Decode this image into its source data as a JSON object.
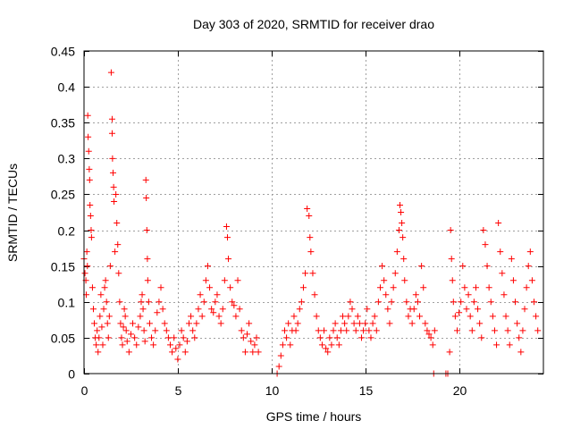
{
  "chart_data": {
    "type": "scatter",
    "title": "Day 303 of 2020, SRMTID for receiver drao",
    "xlabel": "GPS time / hours",
    "ylabel": "SRMTID / TECUs",
    "xlim": [
      0,
      24.5
    ],
    "ylim": [
      0,
      0.45
    ],
    "xticks": [
      0,
      5,
      10,
      15,
      20
    ],
    "xtick_labels": [
      "0",
      "5",
      "10",
      "15",
      "20"
    ],
    "yticks": [
      0,
      0.05,
      0.1,
      0.15,
      0.2,
      0.25,
      0.3,
      0.35,
      0.4,
      0.45
    ],
    "ytick_labels": [
      "0",
      "0.05",
      "0.1",
      "0.15",
      "0.2",
      "0.25",
      "0.3",
      "0.35",
      "0.4",
      "0.45"
    ],
    "grid": true,
    "marker": "plus",
    "color": "#ff0000",
    "series": [
      {
        "name": "SRMTID",
        "points": [
          [
            0.0,
            0.16
          ],
          [
            0.05,
            0.14
          ],
          [
            0.1,
            0.13
          ],
          [
            0.12,
            0.11
          ],
          [
            0.15,
            0.17
          ],
          [
            0.18,
            0.15
          ],
          [
            0.2,
            0.36
          ],
          [
            0.22,
            0.33
          ],
          [
            0.25,
            0.31
          ],
          [
            0.28,
            0.285
          ],
          [
            0.3,
            0.27
          ],
          [
            0.32,
            0.235
          ],
          [
            0.35,
            0.22
          ],
          [
            0.38,
            0.2
          ],
          [
            0.4,
            0.19
          ],
          [
            0.45,
            0.12
          ],
          [
            0.5,
            0.09
          ],
          [
            0.55,
            0.07
          ],
          [
            0.6,
            0.05
          ],
          [
            0.65,
            0.04
          ],
          [
            0.7,
            0.06
          ],
          [
            0.75,
            0.03
          ],
          [
            0.8,
            0.05
          ],
          [
            0.85,
            0.08
          ],
          [
            0.9,
            0.11
          ],
          [
            0.95,
            0.065
          ],
          [
            1.0,
            0.04
          ],
          [
            1.05,
            0.09
          ],
          [
            1.1,
            0.12
          ],
          [
            1.15,
            0.13
          ],
          [
            1.2,
            0.1
          ],
          [
            1.25,
            0.07
          ],
          [
            1.3,
            0.05
          ],
          [
            1.35,
            0.08
          ],
          [
            1.4,
            0.15
          ],
          [
            1.45,
            0.42
          ],
          [
            1.5,
            0.355
          ],
          [
            1.5,
            0.335
          ],
          [
            1.52,
            0.3
          ],
          [
            1.55,
            0.28
          ],
          [
            1.58,
            0.26
          ],
          [
            1.6,
            0.24
          ],
          [
            1.65,
            0.17
          ],
          [
            1.7,
            0.25
          ],
          [
            1.75,
            0.21
          ],
          [
            1.8,
            0.18
          ],
          [
            1.85,
            0.14
          ],
          [
            1.9,
            0.1
          ],
          [
            1.95,
            0.07
          ],
          [
            2.0,
            0.05
          ],
          [
            2.05,
            0.04
          ],
          [
            2.1,
            0.065
          ],
          [
            2.15,
            0.09
          ],
          [
            2.2,
            0.08
          ],
          [
            2.25,
            0.06
          ],
          [
            2.3,
            0.045
          ],
          [
            2.4,
            0.03
          ],
          [
            2.5,
            0.055
          ],
          [
            2.6,
            0.07
          ],
          [
            2.7,
            0.05
          ],
          [
            2.8,
            0.04
          ],
          [
            2.9,
            0.065
          ],
          [
            3.0,
            0.08
          ],
          [
            3.05,
            0.1
          ],
          [
            3.1,
            0.11
          ],
          [
            3.15,
            0.09
          ],
          [
            3.2,
            0.06
          ],
          [
            3.25,
            0.045
          ],
          [
            3.3,
            0.27
          ],
          [
            3.32,
            0.245
          ],
          [
            3.35,
            0.2
          ],
          [
            3.38,
            0.16
          ],
          [
            3.4,
            0.13
          ],
          [
            3.45,
            0.1
          ],
          [
            3.5,
            0.07
          ],
          [
            3.6,
            0.05
          ],
          [
            3.7,
            0.04
          ],
          [
            3.8,
            0.06
          ],
          [
            3.9,
            0.085
          ],
          [
            4.0,
            0.1
          ],
          [
            4.1,
            0.12
          ],
          [
            4.2,
            0.09
          ],
          [
            4.3,
            0.07
          ],
          [
            4.4,
            0.06
          ],
          [
            4.5,
            0.05
          ],
          [
            4.6,
            0.04
          ],
          [
            4.7,
            0.03
          ],
          [
            4.8,
            0.05
          ],
          [
            4.9,
            0.035
          ],
          [
            5.0,
            0.02
          ],
          [
            5.1,
            0.04
          ],
          [
            5.2,
            0.06
          ],
          [
            5.3,
            0.05
          ],
          [
            5.4,
            0.03
          ],
          [
            5.5,
            0.045
          ],
          [
            5.6,
            0.07
          ],
          [
            5.7,
            0.08
          ],
          [
            5.8,
            0.06
          ],
          [
            5.9,
            0.05
          ],
          [
            6.0,
            0.07
          ],
          [
            6.1,
            0.09
          ],
          [
            6.2,
            0.11
          ],
          [
            6.3,
            0.08
          ],
          [
            6.4,
            0.1
          ],
          [
            6.5,
            0.13
          ],
          [
            6.6,
            0.15
          ],
          [
            6.7,
            0.12
          ],
          [
            6.8,
            0.09
          ],
          [
            6.9,
            0.085
          ],
          [
            7.0,
            0.1
          ],
          [
            7.1,
            0.11
          ],
          [
            7.2,
            0.08
          ],
          [
            7.3,
            0.07
          ],
          [
            7.4,
            0.09
          ],
          [
            7.5,
            0.13
          ],
          [
            7.6,
            0.205
          ],
          [
            7.65,
            0.19
          ],
          [
            7.7,
            0.16
          ],
          [
            7.8,
            0.12
          ],
          [
            7.9,
            0.1
          ],
          [
            8.0,
            0.095
          ],
          [
            8.1,
            0.08
          ],
          [
            8.2,
            0.13
          ],
          [
            8.3,
            0.09
          ],
          [
            8.4,
            0.06
          ],
          [
            8.5,
            0.05
          ],
          [
            8.6,
            0.03
          ],
          [
            8.7,
            0.055
          ],
          [
            8.8,
            0.07
          ],
          [
            8.9,
            0.045
          ],
          [
            9.0,
            0.03
          ],
          [
            9.1,
            0.04
          ],
          [
            9.2,
            0.05
          ],
          [
            9.3,
            0.03
          ],
          [
            10.3,
            0.0
          ],
          [
            10.4,
            0.01
          ],
          [
            10.5,
            0.025
          ],
          [
            10.6,
            0.04
          ],
          [
            10.7,
            0.06
          ],
          [
            10.8,
            0.05
          ],
          [
            10.9,
            0.07
          ],
          [
            11.0,
            0.04
          ],
          [
            11.1,
            0.06
          ],
          [
            11.2,
            0.08
          ],
          [
            11.3,
            0.06
          ],
          [
            11.4,
            0.07
          ],
          [
            11.5,
            0.09
          ],
          [
            11.6,
            0.1
          ],
          [
            11.7,
            0.12
          ],
          [
            11.8,
            0.14
          ],
          [
            11.9,
            0.23
          ],
          [
            12.0,
            0.22
          ],
          [
            12.05,
            0.19
          ],
          [
            12.1,
            0.17
          ],
          [
            12.2,
            0.14
          ],
          [
            12.3,
            0.11
          ],
          [
            12.4,
            0.08
          ],
          [
            12.5,
            0.06
          ],
          [
            12.6,
            0.05
          ],
          [
            12.7,
            0.04
          ],
          [
            12.8,
            0.06
          ],
          [
            12.9,
            0.035
          ],
          [
            13.0,
            0.03
          ],
          [
            13.1,
            0.05
          ],
          [
            13.2,
            0.04
          ],
          [
            13.3,
            0.06
          ],
          [
            13.4,
            0.07
          ],
          [
            13.5,
            0.05
          ],
          [
            13.6,
            0.04
          ],
          [
            13.7,
            0.06
          ],
          [
            13.8,
            0.08
          ],
          [
            13.9,
            0.07
          ],
          [
            14.0,
            0.06
          ],
          [
            14.1,
            0.08
          ],
          [
            14.2,
            0.1
          ],
          [
            14.3,
            0.09
          ],
          [
            14.4,
            0.07
          ],
          [
            14.5,
            0.06
          ],
          [
            14.6,
            0.08
          ],
          [
            14.7,
            0.07
          ],
          [
            14.8,
            0.05
          ],
          [
            14.9,
            0.06
          ],
          [
            15.0,
            0.07
          ],
          [
            15.1,
            0.09
          ],
          [
            15.2,
            0.06
          ],
          [
            15.3,
            0.05
          ],
          [
            15.4,
            0.07
          ],
          [
            15.5,
            0.08
          ],
          [
            15.6,
            0.06
          ],
          [
            15.7,
            0.1
          ],
          [
            15.8,
            0.12
          ],
          [
            15.9,
            0.15
          ],
          [
            16.0,
            0.13
          ],
          [
            16.1,
            0.11
          ],
          [
            16.2,
            0.09
          ],
          [
            16.3,
            0.07
          ],
          [
            16.4,
            0.1
          ],
          [
            16.5,
            0.12
          ],
          [
            16.6,
            0.14
          ],
          [
            16.7,
            0.17
          ],
          [
            16.8,
            0.2
          ],
          [
            16.85,
            0.235
          ],
          [
            16.9,
            0.225
          ],
          [
            16.95,
            0.21
          ],
          [
            17.0,
            0.19
          ],
          [
            17.05,
            0.16
          ],
          [
            17.1,
            0.13
          ],
          [
            17.2,
            0.1
          ],
          [
            17.3,
            0.08
          ],
          [
            17.4,
            0.09
          ],
          [
            17.5,
            0.07
          ],
          [
            17.6,
            0.09
          ],
          [
            17.7,
            0.11
          ],
          [
            17.8,
            0.1
          ],
          [
            17.9,
            0.08
          ],
          [
            18.0,
            0.15
          ],
          [
            18.1,
            0.12
          ],
          [
            18.2,
            0.07
          ],
          [
            18.3,
            0.06
          ],
          [
            18.4,
            0.055
          ],
          [
            18.5,
            0.05
          ],
          [
            18.6,
            0.04
          ],
          [
            18.7,
            0.06
          ],
          [
            18.65,
            0.0
          ],
          [
            19.3,
            0.0
          ],
          [
            19.4,
            0.0
          ],
          [
            19.5,
            0.03
          ],
          [
            19.55,
            0.2
          ],
          [
            19.6,
            0.16
          ],
          [
            19.65,
            0.13
          ],
          [
            19.7,
            0.1
          ],
          [
            19.8,
            0.08
          ],
          [
            19.9,
            0.06
          ],
          [
            20.0,
            0.085
          ],
          [
            20.1,
            0.1
          ],
          [
            20.2,
            0.15
          ],
          [
            20.3,
            0.12
          ],
          [
            20.4,
            0.09
          ],
          [
            20.5,
            0.11
          ],
          [
            20.6,
            0.08
          ],
          [
            20.7,
            0.06
          ],
          [
            20.8,
            0.1
          ],
          [
            20.9,
            0.12
          ],
          [
            21.0,
            0.09
          ],
          [
            21.1,
            0.07
          ],
          [
            21.2,
            0.05
          ],
          [
            21.3,
            0.2
          ],
          [
            21.4,
            0.18
          ],
          [
            21.5,
            0.15
          ],
          [
            21.6,
            0.12
          ],
          [
            21.7,
            0.1
          ],
          [
            21.8,
            0.08
          ],
          [
            21.9,
            0.06
          ],
          [
            22.0,
            0.04
          ],
          [
            22.1,
            0.21
          ],
          [
            22.2,
            0.17
          ],
          [
            22.3,
            0.14
          ],
          [
            22.4,
            0.11
          ],
          [
            22.5,
            0.08
          ],
          [
            22.6,
            0.06
          ],
          [
            22.7,
            0.04
          ],
          [
            22.8,
            0.16
          ],
          [
            22.9,
            0.13
          ],
          [
            23.0,
            0.1
          ],
          [
            23.1,
            0.07
          ],
          [
            23.2,
            0.05
          ],
          [
            23.3,
            0.03
          ],
          [
            23.4,
            0.06
          ],
          [
            23.5,
            0.09
          ],
          [
            23.6,
            0.12
          ],
          [
            23.7,
            0.15
          ],
          [
            23.8,
            0.17
          ],
          [
            23.9,
            0.13
          ],
          [
            24.0,
            0.1
          ],
          [
            24.1,
            0.08
          ],
          [
            24.2,
            0.06
          ]
        ]
      }
    ]
  }
}
